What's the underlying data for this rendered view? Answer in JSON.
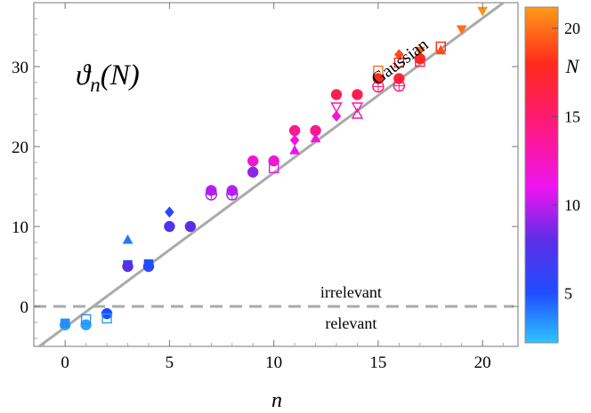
{
  "chart_data": {
    "type": "scatter",
    "title": "ϑn(N)",
    "title_main": "ϑ",
    "title_sub": "n",
    "title_arg": "(N)",
    "xlabel": "n",
    "ylabel": "",
    "xlim": [
      -1.5,
      21.7
    ],
    "ylim": [
      -5,
      38
    ],
    "xticks": [
      0,
      5,
      10,
      15,
      20
    ],
    "yticks": [
      0,
      10,
      20,
      30
    ],
    "grid": false,
    "reference_lines": [
      {
        "name": "Gaussian",
        "label": "Gaussian",
        "style": "solid",
        "color": "#aaaaaa",
        "x": [
          -1.5,
          21
        ],
        "y": [
          -5.5,
          38
        ]
      },
      {
        "name": "marginal",
        "style": "dashed",
        "color": "#aaaaaa",
        "x": [
          -1.5,
          21.5
        ],
        "y": [
          0,
          0
        ]
      }
    ],
    "annotations": [
      {
        "name": "irrelevant",
        "text": "irrelevant",
        "x": 13.7,
        "y": 1.8
      },
      {
        "name": "relevant",
        "text": "relevant",
        "x": 13.7,
        "y": -2.1
      }
    ],
    "colorbar": {
      "label": "N",
      "min": 2.2,
      "max": 21.2,
      "ticks": [
        5,
        10,
        15,
        20
      ],
      "stops": [
        {
          "v": 2.2,
          "color": "#2ec5ff"
        },
        {
          "v": 5,
          "color": "#1f4dff"
        },
        {
          "v": 8,
          "color": "#5b2ee6"
        },
        {
          "v": 11,
          "color": "#ee14f0"
        },
        {
          "v": 15,
          "color": "#ff1a6e"
        },
        {
          "v": 18,
          "color": "#ff2a1a"
        },
        {
          "v": 21.2,
          "color": "#ff9a1a"
        }
      ]
    },
    "points": [
      {
        "n": 0,
        "y": -2.3,
        "N": 3,
        "marker": "circle"
      },
      {
        "n": 0,
        "y": -2.1,
        "N": 3.5,
        "marker": "square"
      },
      {
        "n": 1,
        "y": -2.3,
        "N": 3,
        "marker": "circle"
      },
      {
        "n": 1,
        "y": -1.6,
        "N": 3.5,
        "marker": "square-open"
      },
      {
        "n": 2,
        "y": -0.9,
        "N": 5,
        "marker": "circle"
      },
      {
        "n": 2,
        "y": -1.5,
        "N": 3.2,
        "marker": "square-open"
      },
      {
        "n": 3,
        "y": 5.2,
        "N": 5,
        "marker": "square"
      },
      {
        "n": 3,
        "y": 5.0,
        "N": 8,
        "marker": "circle"
      },
      {
        "n": 3,
        "y": 8.3,
        "N": 4,
        "marker": "triangle"
      },
      {
        "n": 4,
        "y": 5.0,
        "N": 6,
        "marker": "circle"
      },
      {
        "n": 4,
        "y": 5.3,
        "N": 5,
        "marker": "square"
      },
      {
        "n": 5,
        "y": 11.8,
        "N": 5.5,
        "marker": "diamond"
      },
      {
        "n": 5,
        "y": 10.0,
        "N": 7.5,
        "marker": "circle"
      },
      {
        "n": 6,
        "y": 10.0,
        "N": 8,
        "marker": "circle"
      },
      {
        "n": 7,
        "y": 14.5,
        "N": 10,
        "marker": "circle"
      },
      {
        "n": 7,
        "y": 14.0,
        "N": 9.5,
        "marker": "circle-open"
      },
      {
        "n": 8,
        "y": 14.5,
        "N": 10,
        "marker": "circle"
      },
      {
        "n": 8,
        "y": 14.0,
        "N": 9.5,
        "marker": "circle-open"
      },
      {
        "n": 9,
        "y": 18.2,
        "N": 12,
        "marker": "circle"
      },
      {
        "n": 9,
        "y": 16.8,
        "N": 9,
        "marker": "circle"
      },
      {
        "n": 10,
        "y": 18.2,
        "N": 12,
        "marker": "circle"
      },
      {
        "n": 10,
        "y": 17.3,
        "N": 11,
        "marker": "square-open"
      },
      {
        "n": 11,
        "y": 22.0,
        "N": 14,
        "marker": "circle"
      },
      {
        "n": 11,
        "y": 20.8,
        "N": 11.5,
        "marker": "diamond"
      },
      {
        "n": 11,
        "y": 19.5,
        "N": 11,
        "marker": "triangle"
      },
      {
        "n": 12,
        "y": 22.0,
        "N": 14,
        "marker": "circle"
      },
      {
        "n": 12,
        "y": 21.0,
        "N": 11.5,
        "marker": "triangle"
      },
      {
        "n": 13,
        "y": 26.5,
        "N": 16,
        "marker": "circle"
      },
      {
        "n": 13,
        "y": 25.0,
        "N": 13,
        "marker": "triangle-down-open"
      },
      {
        "n": 13,
        "y": 23.8,
        "N": 12,
        "marker": "diamond"
      },
      {
        "n": 14,
        "y": 26.5,
        "N": 16,
        "marker": "circle"
      },
      {
        "n": 14,
        "y": 25.0,
        "N": 13,
        "marker": "triangle-down-open"
      },
      {
        "n": 14,
        "y": 24.0,
        "N": 13,
        "marker": "triangle-open"
      },
      {
        "n": 15,
        "y": 29.5,
        "N": 20,
        "marker": "square-open"
      },
      {
        "n": 15,
        "y": 28.5,
        "N": 18,
        "marker": "circle"
      },
      {
        "n": 15,
        "y": 27.5,
        "N": 15,
        "marker": "circle-open"
      },
      {
        "n": 16,
        "y": 31.5,
        "N": 19,
        "marker": "diamond"
      },
      {
        "n": 16,
        "y": 30.5,
        "N": 18,
        "marker": "square-open"
      },
      {
        "n": 16,
        "y": 28.5,
        "N": 17,
        "marker": "circle"
      },
      {
        "n": 16,
        "y": 27.6,
        "N": 15,
        "marker": "circle-open"
      },
      {
        "n": 17,
        "y": 32.0,
        "N": 20,
        "marker": "triangle-down"
      },
      {
        "n": 17,
        "y": 31.0,
        "N": 18,
        "marker": "circle"
      },
      {
        "n": 17,
        "y": 30.6,
        "N": 16,
        "marker": "square-open"
      },
      {
        "n": 18,
        "y": 32.5,
        "N": 18,
        "marker": "square-open"
      },
      {
        "n": 18,
        "y": 32.0,
        "N": 19,
        "marker": "triangle"
      },
      {
        "n": 19,
        "y": 34.7,
        "N": 20,
        "marker": "triangle-down"
      },
      {
        "n": 20,
        "y": 37.0,
        "N": 21,
        "marker": "triangle-down"
      }
    ]
  }
}
